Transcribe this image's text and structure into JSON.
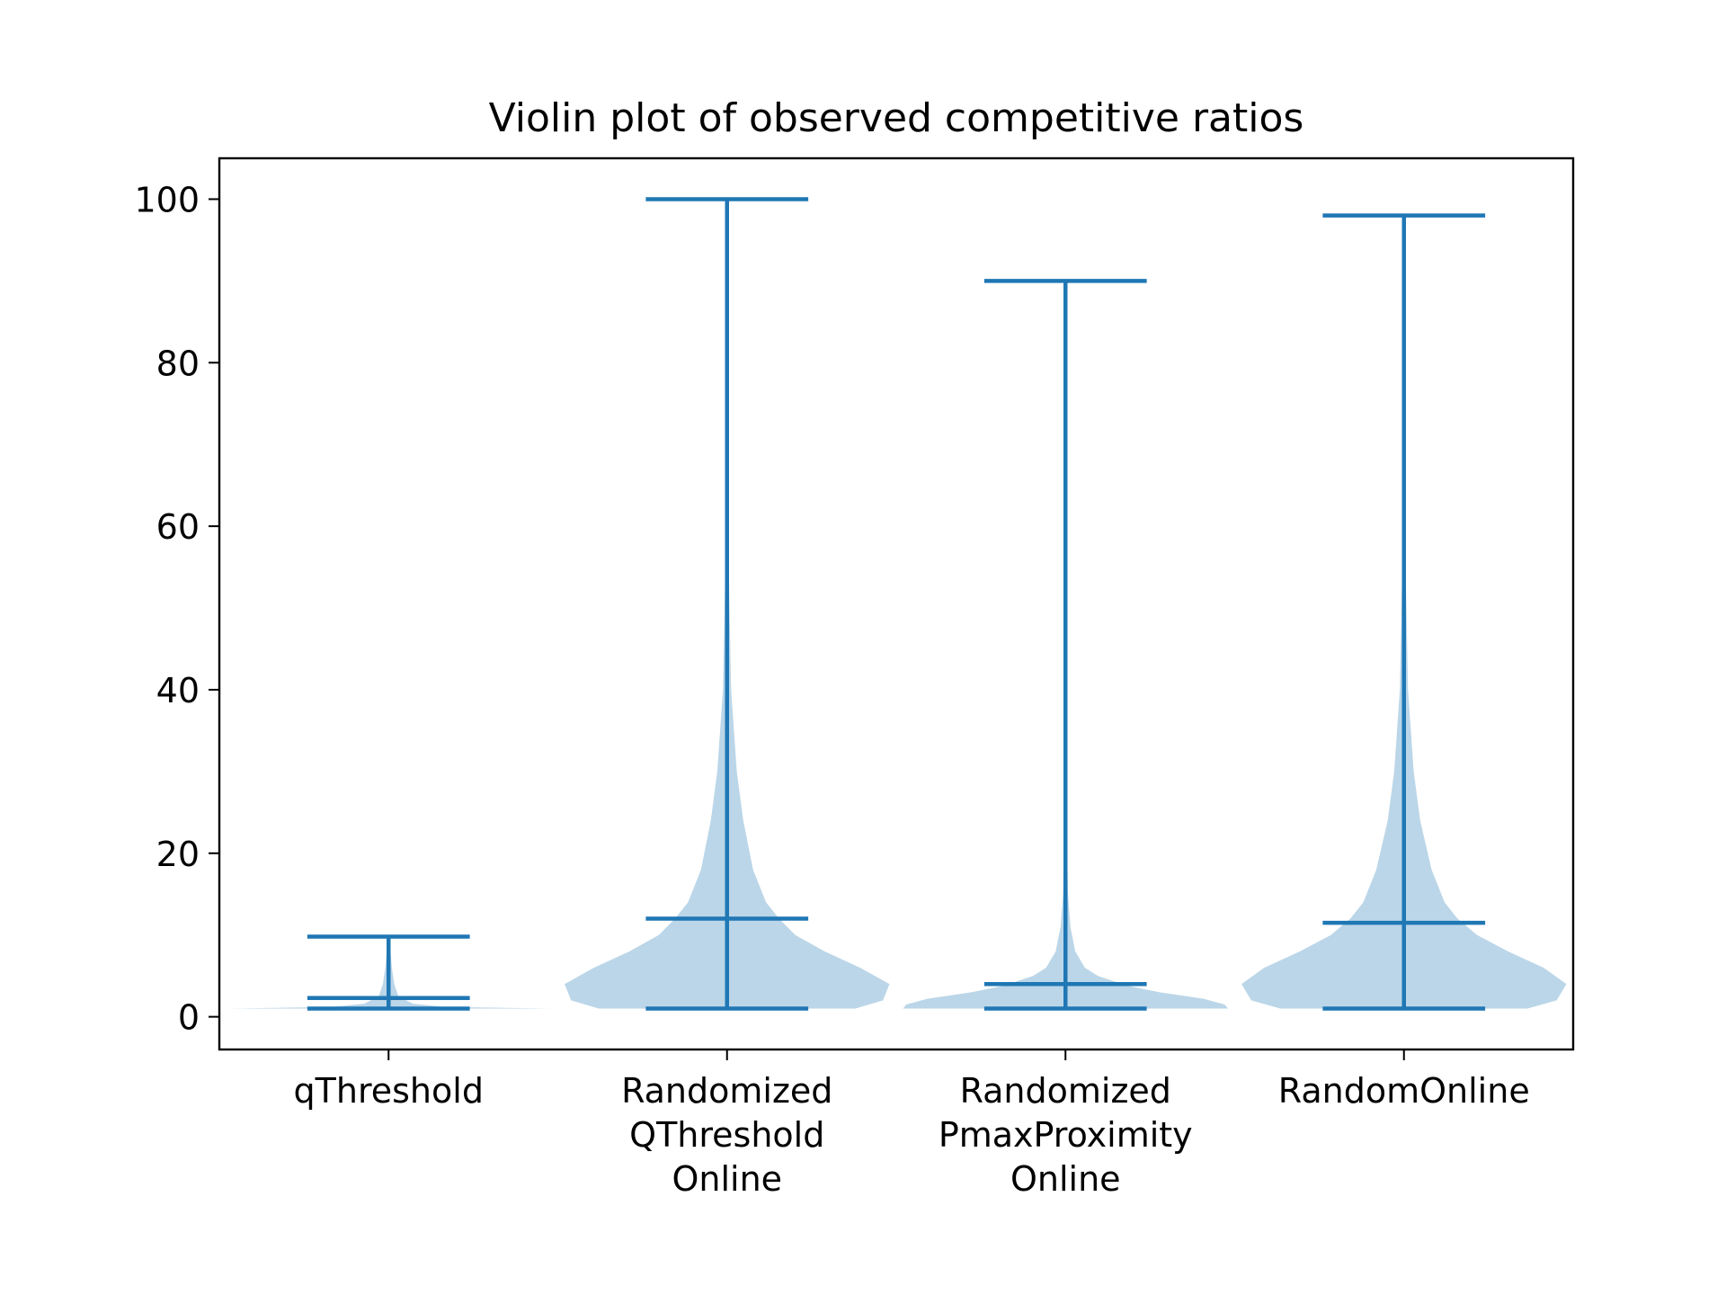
{
  "chart_data": {
    "type": "violin",
    "title": "Violin plot of observed competitive ratios",
    "xlabel": "",
    "ylabel": "",
    "ylim": [
      -4,
      105
    ],
    "yticks": [
      0,
      20,
      40,
      60,
      80,
      100
    ],
    "grid": false,
    "colors": {
      "body": "#1f77b4",
      "body_opacity": 0.3,
      "lines": "#1f77b4"
    },
    "categories": [
      {
        "label_lines": [
          "qThreshold"
        ],
        "min": 1.0,
        "max": 9.8,
        "median": 2.3,
        "profile": [
          [
            1.0,
            1.0
          ],
          [
            1.2,
            0.35
          ],
          [
            1.6,
            0.15
          ],
          [
            2.5,
            0.06
          ],
          [
            4,
            0.035
          ],
          [
            6,
            0.02
          ],
          [
            8,
            0.012
          ],
          [
            9.8,
            0.004
          ]
        ]
      },
      {
        "label_lines": [
          "Randomized",
          "QThreshold",
          "Online"
        ],
        "min": 1.0,
        "max": 100.0,
        "median": 12.0,
        "profile": [
          [
            1.0,
            0.79
          ],
          [
            2.0,
            0.96
          ],
          [
            4.0,
            1.0
          ],
          [
            6.0,
            0.82
          ],
          [
            8.0,
            0.6
          ],
          [
            10.0,
            0.42
          ],
          [
            12.0,
            0.32
          ],
          [
            14.0,
            0.24
          ],
          [
            18.0,
            0.16
          ],
          [
            24.0,
            0.1
          ],
          [
            30.0,
            0.06
          ],
          [
            40.0,
            0.025
          ],
          [
            55.0,
            0.01
          ],
          [
            75.0,
            0.004
          ],
          [
            100.0,
            0.001
          ]
        ]
      },
      {
        "label_lines": [
          "Randomized",
          "PmaxProximity",
          "Online"
        ],
        "min": 1.0,
        "max": 90.0,
        "median": 4.0,
        "profile": [
          [
            1.0,
            1.0
          ],
          [
            1.5,
            0.98
          ],
          [
            2.2,
            0.85
          ],
          [
            3.0,
            0.58
          ],
          [
            3.8,
            0.38
          ],
          [
            5.0,
            0.2
          ],
          [
            6.0,
            0.12
          ],
          [
            8.0,
            0.06
          ],
          [
            11.0,
            0.03
          ],
          [
            15.0,
            0.015
          ],
          [
            25.0,
            0.006
          ],
          [
            40.0,
            0.002
          ],
          [
            90.0,
            0.001
          ]
        ]
      },
      {
        "label_lines": [
          "RandomOnline"
        ],
        "min": 1.0,
        "max": 98.0,
        "median": 11.5,
        "profile": [
          [
            1.0,
            0.76
          ],
          [
            2.0,
            0.94
          ],
          [
            4.0,
            1.0
          ],
          [
            6.0,
            0.86
          ],
          [
            8.0,
            0.64
          ],
          [
            10.0,
            0.45
          ],
          [
            12.0,
            0.33
          ],
          [
            14.0,
            0.25
          ],
          [
            18.0,
            0.17
          ],
          [
            24.0,
            0.1
          ],
          [
            30.0,
            0.06
          ],
          [
            40.0,
            0.025
          ],
          [
            55.0,
            0.01
          ],
          [
            75.0,
            0.004
          ],
          [
            98.0,
            0.001
          ]
        ]
      }
    ]
  }
}
